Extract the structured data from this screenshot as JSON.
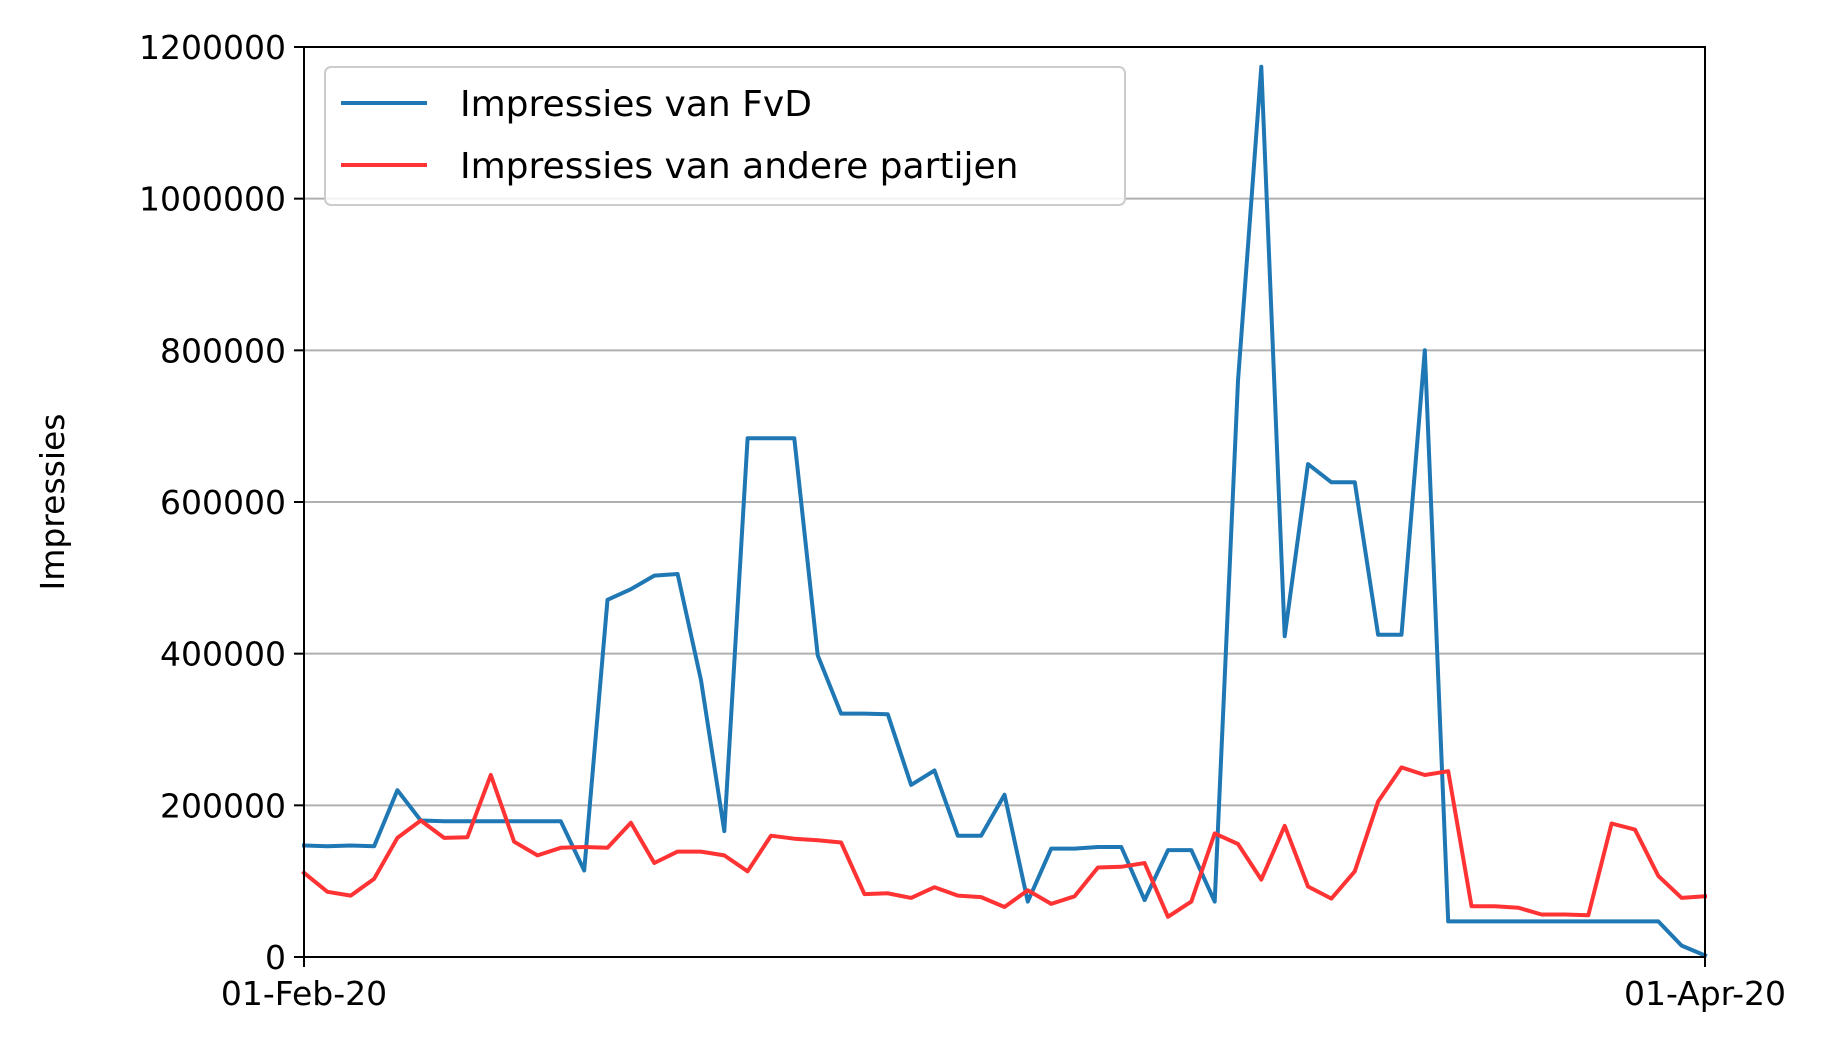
{
  "chart_data": {
    "type": "line",
    "title": "",
    "xlabel": "",
    "ylabel": "Impressies",
    "x_ticks": [
      "01-Feb-20",
      "01-Apr-20"
    ],
    "x_start": "2020-02-01",
    "x_end": "2020-04-01",
    "ylim": [
      0,
      1200000
    ],
    "y_ticks": [
      0,
      200000,
      400000,
      600000,
      800000,
      1000000,
      1200000
    ],
    "y_tick_labels": [
      "0",
      "200000",
      "400000",
      "600000",
      "800000",
      "1000000",
      "1200000"
    ],
    "grid": "horizontal",
    "legend_position": "top-left",
    "series": [
      {
        "name": "Impressies van FvD",
        "color": "#1f77b4",
        "x": [
          "2020-02-01",
          "2020-02-02",
          "2020-02-03",
          "2020-02-04",
          "2020-02-05",
          "2020-02-06",
          "2020-02-07",
          "2020-02-08",
          "2020-02-09",
          "2020-02-10",
          "2020-02-11",
          "2020-02-12",
          "2020-02-13",
          "2020-02-14",
          "2020-02-15",
          "2020-02-16",
          "2020-02-17",
          "2020-02-18",
          "2020-02-19",
          "2020-02-20",
          "2020-02-21",
          "2020-02-22",
          "2020-02-23",
          "2020-02-24",
          "2020-02-25",
          "2020-02-26",
          "2020-02-27",
          "2020-02-28",
          "2020-02-29",
          "2020-03-01",
          "2020-03-02",
          "2020-03-03",
          "2020-03-04",
          "2020-03-05",
          "2020-03-06",
          "2020-03-07",
          "2020-03-08",
          "2020-03-09",
          "2020-03-10",
          "2020-03-11",
          "2020-03-12",
          "2020-03-13",
          "2020-03-14",
          "2020-03-15",
          "2020-03-16",
          "2020-03-17",
          "2020-03-18",
          "2020-03-19",
          "2020-03-20",
          "2020-03-21",
          "2020-03-22",
          "2020-03-23",
          "2020-03-24",
          "2020-03-25",
          "2020-03-26",
          "2020-03-27",
          "2020-03-28",
          "2020-03-29",
          "2020-03-30",
          "2020-03-31",
          "2020-04-01"
        ],
        "values": [
          147000,
          146000,
          147000,
          146000,
          220000,
          180000,
          179000,
          179000,
          179000,
          179000,
          179000,
          179000,
          114000,
          471000,
          485000,
          503000,
          505000,
          365000,
          166000,
          684000,
          684000,
          684000,
          398000,
          321000,
          321000,
          320000,
          227000,
          246000,
          160000,
          160000,
          214000,
          73000,
          143000,
          143000,
          145000,
          145000,
          75000,
          141000,
          141000,
          73000,
          760000,
          1174000,
          423000,
          650000,
          626000,
          626000,
          425000,
          425000,
          800000,
          47000,
          47000,
          47000,
          47000,
          47000,
          47000,
          47000,
          47000,
          47000,
          47000,
          15000,
          2000
        ]
      },
      {
        "name": "Impressies van andere partijen",
        "color": "#ff3333",
        "x": [
          "2020-02-01",
          "2020-02-02",
          "2020-02-03",
          "2020-02-04",
          "2020-02-05",
          "2020-02-06",
          "2020-02-07",
          "2020-02-08",
          "2020-02-09",
          "2020-02-10",
          "2020-02-11",
          "2020-02-12",
          "2020-02-13",
          "2020-02-14",
          "2020-02-15",
          "2020-02-16",
          "2020-02-17",
          "2020-02-18",
          "2020-02-19",
          "2020-02-20",
          "2020-02-21",
          "2020-02-22",
          "2020-02-23",
          "2020-02-24",
          "2020-02-25",
          "2020-02-26",
          "2020-02-27",
          "2020-02-28",
          "2020-02-29",
          "2020-03-01",
          "2020-03-02",
          "2020-03-03",
          "2020-03-04",
          "2020-03-05",
          "2020-03-06",
          "2020-03-07",
          "2020-03-08",
          "2020-03-09",
          "2020-03-10",
          "2020-03-11",
          "2020-03-12",
          "2020-03-13",
          "2020-03-14",
          "2020-03-15",
          "2020-03-16",
          "2020-03-17",
          "2020-03-18",
          "2020-03-19",
          "2020-03-20",
          "2020-03-21",
          "2020-03-22",
          "2020-03-23",
          "2020-03-24",
          "2020-03-25",
          "2020-03-26",
          "2020-03-27",
          "2020-03-28",
          "2020-03-29",
          "2020-03-30",
          "2020-03-31",
          "2020-04-01"
        ],
        "values": [
          111000,
          86000,
          81000,
          103000,
          157000,
          180000,
          157000,
          158000,
          240000,
          152000,
          134000,
          144000,
          145000,
          144000,
          177000,
          124000,
          139000,
          139000,
          134000,
          113000,
          160000,
          156000,
          154000,
          151000,
          83000,
          84000,
          78000,
          92000,
          81000,
          79000,
          66000,
          88000,
          70000,
          80000,
          118000,
          119000,
          124000,
          53000,
          73000,
          163000,
          149000,
          102000,
          173000,
          93000,
          77000,
          113000,
          205000,
          250000,
          240000,
          245000,
          67000,
          67000,
          65000,
          56000,
          56000,
          55000,
          176000,
          168000,
          107000,
          78000,
          80000
        ]
      }
    ]
  }
}
